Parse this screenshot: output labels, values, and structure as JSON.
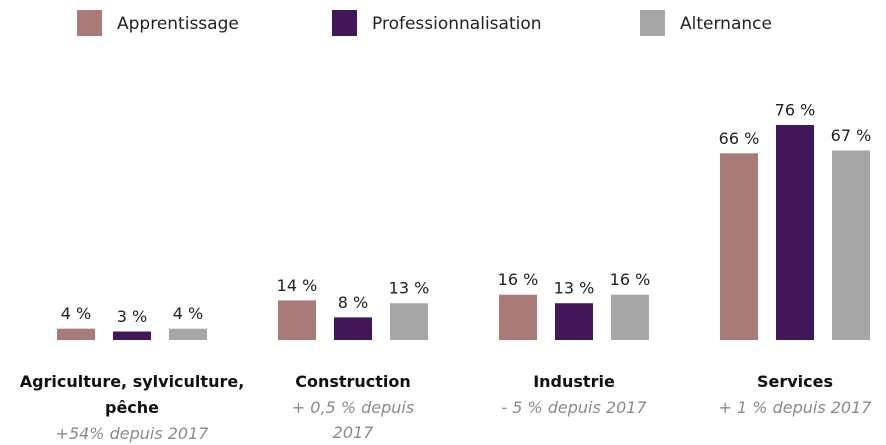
{
  "chart_data": {
    "type": "bar",
    "categories": [
      "Agriculture, sylviculture, pêche",
      "Construction",
      "Industrie",
      "Services"
    ],
    "annotations": [
      "+54% depuis 2017",
      "+ 0,5 % depuis 2017",
      "- 5 % depuis 2017",
      "+ 1 % depuis 2017"
    ],
    "series": [
      {
        "name": "Apprentissage",
        "color": "#a87b78",
        "values": [
          4,
          14,
          16,
          66
        ],
        "value_labels": [
          "4 %",
          "14 %",
          "16 %",
          "66 %"
        ]
      },
      {
        "name": "Professionnalisation",
        "color": "#42175a",
        "values": [
          3,
          8,
          13,
          76
        ],
        "value_labels": [
          "3 %",
          "8 %",
          "13 %",
          "76 %"
        ]
      },
      {
        "name": "Alternance",
        "color": "#a6a6a6",
        "values": [
          4,
          13,
          16,
          67
        ],
        "value_labels": [
          "4 %",
          "13 %",
          "16 %",
          "67 %"
        ]
      }
    ],
    "legend": "top"
  }
}
